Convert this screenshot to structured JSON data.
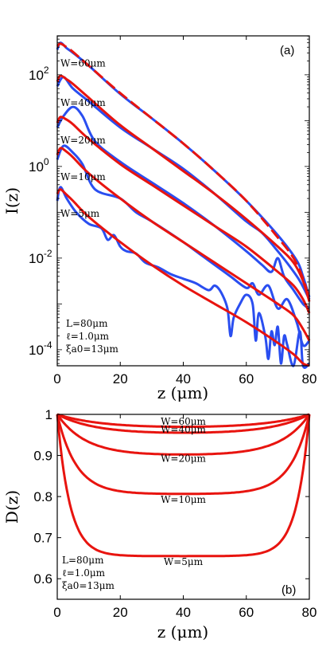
{
  "colors": {
    "sim": "#2a4ef0",
    "theory": "#e8140f",
    "axes": "#000000"
  },
  "chart_data": [
    {
      "type": "line",
      "panel_label": "(a)",
      "xlabel": "z (μm)",
      "ylabel": "I(z)",
      "xlim": [
        0,
        80
      ],
      "ylim_log10": [
        -4.35,
        2.85
      ],
      "yscale": "log",
      "x_ticks": [
        "0",
        "20",
        "40",
        "60",
        "80"
      ],
      "y_ticks": [
        {
          "base": "10",
          "exp": "2",
          "log": 2
        },
        {
          "base": "10",
          "exp": "0",
          "log": 0
        },
        {
          "base": "10",
          "exp": "-2",
          "log": -2
        },
        {
          "base": "10",
          "exp": "-4",
          "log": -4
        }
      ],
      "params": [
        "L=80μm",
        "ℓ=1.0μm",
        "ξa0=13μm"
      ],
      "series": [
        {
          "name": "W=60μm",
          "label_at": [
            1,
            2.18
          ],
          "theory_log10": [
            [
              0,
              2.62
            ],
            [
              1,
              2.68
            ],
            [
              3,
              2.6
            ],
            [
              5,
              2.5
            ],
            [
              10,
              2.2
            ],
            [
              20,
              1.6
            ],
            [
              30,
              1.05
            ],
            [
              40,
              0.5
            ],
            [
              50,
              -0.1
            ],
            [
              60,
              -0.75
            ],
            [
              70,
              -1.55
            ],
            [
              75,
              -2.0
            ],
            [
              78,
              -2.45
            ],
            [
              80,
              -2.9
            ]
          ],
          "sim_log10": [
            [
              0,
              2.55
            ],
            [
              1,
              2.7
            ],
            [
              3,
              2.58
            ],
            [
              5,
              2.48
            ],
            [
              10,
              2.2
            ],
            [
              20,
              1.58
            ],
            [
              30,
              1.05
            ],
            [
              40,
              0.5
            ],
            [
              50,
              -0.1
            ],
            [
              60,
              -0.75
            ],
            [
              70,
              -1.5
            ],
            [
              76,
              -2.05
            ],
            [
              78,
              -2.4
            ],
            [
              80,
              -2.85
            ]
          ]
        },
        {
          "name": "W=40μm",
          "label_at": [
            1,
            1.32
          ],
          "theory_log10": [
            [
              0,
              1.85
            ],
            [
              1,
              1.98
            ],
            [
              3,
              1.9
            ],
            [
              5,
              1.8
            ],
            [
              10,
              1.5
            ],
            [
              20,
              0.9
            ],
            [
              30,
              0.4
            ],
            [
              40,
              -0.1
            ],
            [
              50,
              -0.6
            ],
            [
              60,
              -1.15
            ],
            [
              70,
              -1.75
            ],
            [
              75,
              -2.1
            ],
            [
              78,
              -2.5
            ],
            [
              80,
              -2.95
            ]
          ],
          "sim_log10": [
            [
              0,
              1.75
            ],
            [
              2,
              1.95
            ],
            [
              5,
              1.7
            ],
            [
              10,
              1.42
            ],
            [
              20,
              0.85
            ],
            [
              30,
              0.4
            ],
            [
              40,
              -0.05
            ],
            [
              50,
              -0.6
            ],
            [
              60,
              -1.2
            ],
            [
              65,
              -1.45
            ],
            [
              70,
              -1.85
            ],
            [
              74,
              -2.2
            ],
            [
              77,
              -2.5
            ],
            [
              80,
              -2.9
            ]
          ]
        },
        {
          "name": "W=20μm",
          "label_at": [
            1,
            0.5
          ],
          "theory_log10": [
            [
              0,
              0.95
            ],
            [
              1,
              1.08
            ],
            [
              3,
              1.02
            ],
            [
              5,
              0.92
            ],
            [
              10,
              0.6
            ],
            [
              20,
              0.05
            ],
            [
              30,
              -0.4
            ],
            [
              40,
              -0.85
            ],
            [
              50,
              -1.3
            ],
            [
              60,
              -1.75
            ],
            [
              70,
              -2.3
            ],
            [
              75,
              -2.6
            ],
            [
              78,
              -2.9
            ],
            [
              80,
              -3.2
            ]
          ],
          "sim_log10": [
            [
              0,
              0.85
            ],
            [
              2,
              1.1
            ],
            [
              5,
              1.3
            ],
            [
              8,
              1.1
            ],
            [
              12,
              0.55
            ],
            [
              20,
              0.1
            ],
            [
              30,
              -0.35
            ],
            [
              40,
              -0.8
            ],
            [
              50,
              -1.3
            ],
            [
              60,
              -1.85
            ],
            [
              65,
              -2.15
            ],
            [
              68,
              -2.3
            ],
            [
              70,
              -2.0
            ],
            [
              72,
              -2.4
            ],
            [
              75,
              -2.7
            ],
            [
              78,
              -3.0
            ],
            [
              80,
              -3.1
            ]
          ]
        },
        {
          "name": "W=10μm",
          "label_at": [
            1,
            -0.3
          ],
          "theory_log10": [
            [
              0,
              0.25
            ],
            [
              1,
              0.4
            ],
            [
              3,
              0.32
            ],
            [
              5,
              0.2
            ],
            [
              10,
              -0.15
            ],
            [
              20,
              -0.7
            ],
            [
              30,
              -1.2
            ],
            [
              40,
              -1.65
            ],
            [
              50,
              -2.1
            ],
            [
              60,
              -2.55
            ],
            [
              70,
              -3.0
            ],
            [
              75,
              -3.25
            ],
            [
              78,
              -3.55
            ],
            [
              80,
              -3.8
            ]
          ],
          "sim_log10": [
            [
              0,
              0.15
            ],
            [
              2,
              0.45
            ],
            [
              5,
              0.3
            ],
            [
              8,
              0.05
            ],
            [
              12,
              -0.5
            ],
            [
              20,
              -0.7
            ],
            [
              25,
              -1.0
            ],
            [
              30,
              -1.2
            ],
            [
              40,
              -1.65
            ],
            [
              45,
              -1.9
            ],
            [
              50,
              -2.15
            ],
            [
              55,
              -2.4
            ],
            [
              60,
              -2.65
            ],
            [
              62,
              -2.55
            ],
            [
              64,
              -2.8
            ],
            [
              67,
              -2.6
            ],
            [
              70,
              -3.1
            ],
            [
              73,
              -2.9
            ],
            [
              76,
              -3.4
            ],
            [
              78,
              -3.9
            ],
            [
              80,
              -3.8
            ]
          ]
        },
        {
          "name": "W=5μm",
          "label_at": [
            1,
            -1.1
          ],
          "theory_log10": [
            [
              0,
              -0.6
            ],
            [
              1,
              -0.5
            ],
            [
              3,
              -0.62
            ],
            [
              5,
              -0.75
            ],
            [
              10,
              -1.1
            ],
            [
              20,
              -1.65
            ],
            [
              30,
              -2.15
            ],
            [
              40,
              -2.6
            ],
            [
              50,
              -3.0
            ],
            [
              60,
              -3.4
            ],
            [
              70,
              -3.85
            ],
            [
              75,
              -4.1
            ],
            [
              78,
              -4.3
            ],
            [
              80,
              -4.35
            ]
          ],
          "sim_log10": [
            [
              0,
              -0.75
            ],
            [
              1,
              -0.45
            ],
            [
              3,
              -0.7
            ],
            [
              6,
              -1.0
            ],
            [
              10,
              -1.25
            ],
            [
              14,
              -1.35
            ],
            [
              16,
              -1.6
            ],
            [
              18,
              -1.5
            ],
            [
              20,
              -1.75
            ],
            [
              22,
              -1.85
            ],
            [
              25,
              -1.9
            ],
            [
              28,
              -2.1
            ],
            [
              32,
              -2.2
            ],
            [
              36,
              -2.35
            ],
            [
              40,
              -2.45
            ],
            [
              44,
              -2.55
            ],
            [
              48,
              -2.7
            ],
            [
              50,
              -2.6
            ],
            [
              52,
              -2.75
            ],
            [
              54,
              -3.1
            ],
            [
              55,
              -3.7
            ],
            [
              56,
              -3.3
            ],
            [
              58,
              -3.0
            ],
            [
              60,
              -2.8
            ],
            [
              62,
              -3.0
            ],
            [
              63,
              -3.8
            ],
            [
              64,
              -3.2
            ],
            [
              66,
              -3.7
            ],
            [
              67,
              -4.2
            ],
            [
              68,
              -3.6
            ],
            [
              69,
              -3.9
            ],
            [
              70,
              -3.5
            ],
            [
              71,
              -4.3
            ],
            [
              72,
              -3.7
            ],
            [
              73,
              -3.9
            ],
            [
              75,
              -4.35
            ],
            [
              77,
              -3.6
            ],
            [
              78,
              -4.35
            ],
            [
              80,
              -4.3
            ]
          ]
        }
      ]
    },
    {
      "type": "line",
      "panel_label": "(b)",
      "xlabel": "z (μm)",
      "ylabel": "D(z)",
      "xlim": [
        0,
        80
      ],
      "ylim": [
        0.55,
        1.0
      ],
      "x_ticks": [
        "0",
        "20",
        "40",
        "60",
        "80"
      ],
      "y_ticks": [
        "1",
        "0.9",
        "0.8",
        "0.7",
        "0.6"
      ],
      "params": [
        "L=80μm",
        "ℓ=1.0μm",
        "ξa0=13μm"
      ],
      "series": [
        {
          "name": "W=60μm",
          "min": 0.966,
          "label_at": [
            40,
            0.975
          ]
        },
        {
          "name": "W=40μm",
          "min": 0.952,
          "label_at": [
            40,
            0.955
          ]
        },
        {
          "name": "W=20μm",
          "min": 0.9,
          "label_at": [
            40,
            0.885
          ]
        },
        {
          "name": "W=10μm",
          "min": 0.806,
          "label_at": [
            40,
            0.785
          ]
        },
        {
          "name": "W=5μm",
          "min": 0.655,
          "label_at": [
            40,
            0.633
          ]
        }
      ]
    }
  ]
}
